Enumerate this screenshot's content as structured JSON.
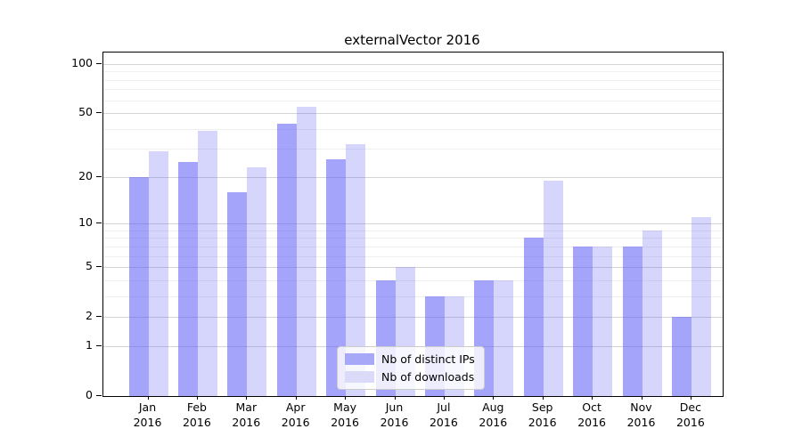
{
  "figure": {
    "title": "externalVector 2016"
  },
  "colors": {
    "bar_base": "#5a5af5",
    "series_dark_alpha": 0.55,
    "series_light_alpha": 0.25,
    "series_dark_flat": "#a8a8f8",
    "series_light_flat": "#dbdbf9",
    "grid_major": "#d4d4d4",
    "grid_minor": "#efefef",
    "spine": "#000000",
    "legend_border": "#cccccc"
  },
  "chart_data": {
    "type": "bar",
    "title": "externalVector 2016",
    "categories": [
      "Jan",
      "Feb",
      "Mar",
      "Apr",
      "May",
      "Jun",
      "Jul",
      "Aug",
      "Sep",
      "Oct",
      "Nov",
      "Dec"
    ],
    "category_year": "2016",
    "series": [
      {
        "name": "Nb of distinct IPs",
        "values": [
          20,
          25,
          16,
          43,
          26,
          4,
          3,
          4,
          8,
          7,
          7,
          2
        ]
      },
      {
        "name": "Nb of downloads",
        "values": [
          29,
          39,
          23,
          55,
          32,
          5,
          3,
          4,
          19,
          7,
          9,
          11
        ]
      }
    ],
    "xlabel": "",
    "ylabel": "",
    "yscale": "log1p",
    "ylim": [
      0,
      117.5
    ],
    "yticks": [
      0,
      1,
      2,
      5,
      10,
      20,
      50,
      100
    ],
    "yticks_minor": [
      3,
      4,
      6,
      7,
      8,
      9,
      30,
      40,
      60,
      70,
      80,
      90
    ],
    "grid": "horizontal",
    "legend_position": "lower-center-inside"
  }
}
